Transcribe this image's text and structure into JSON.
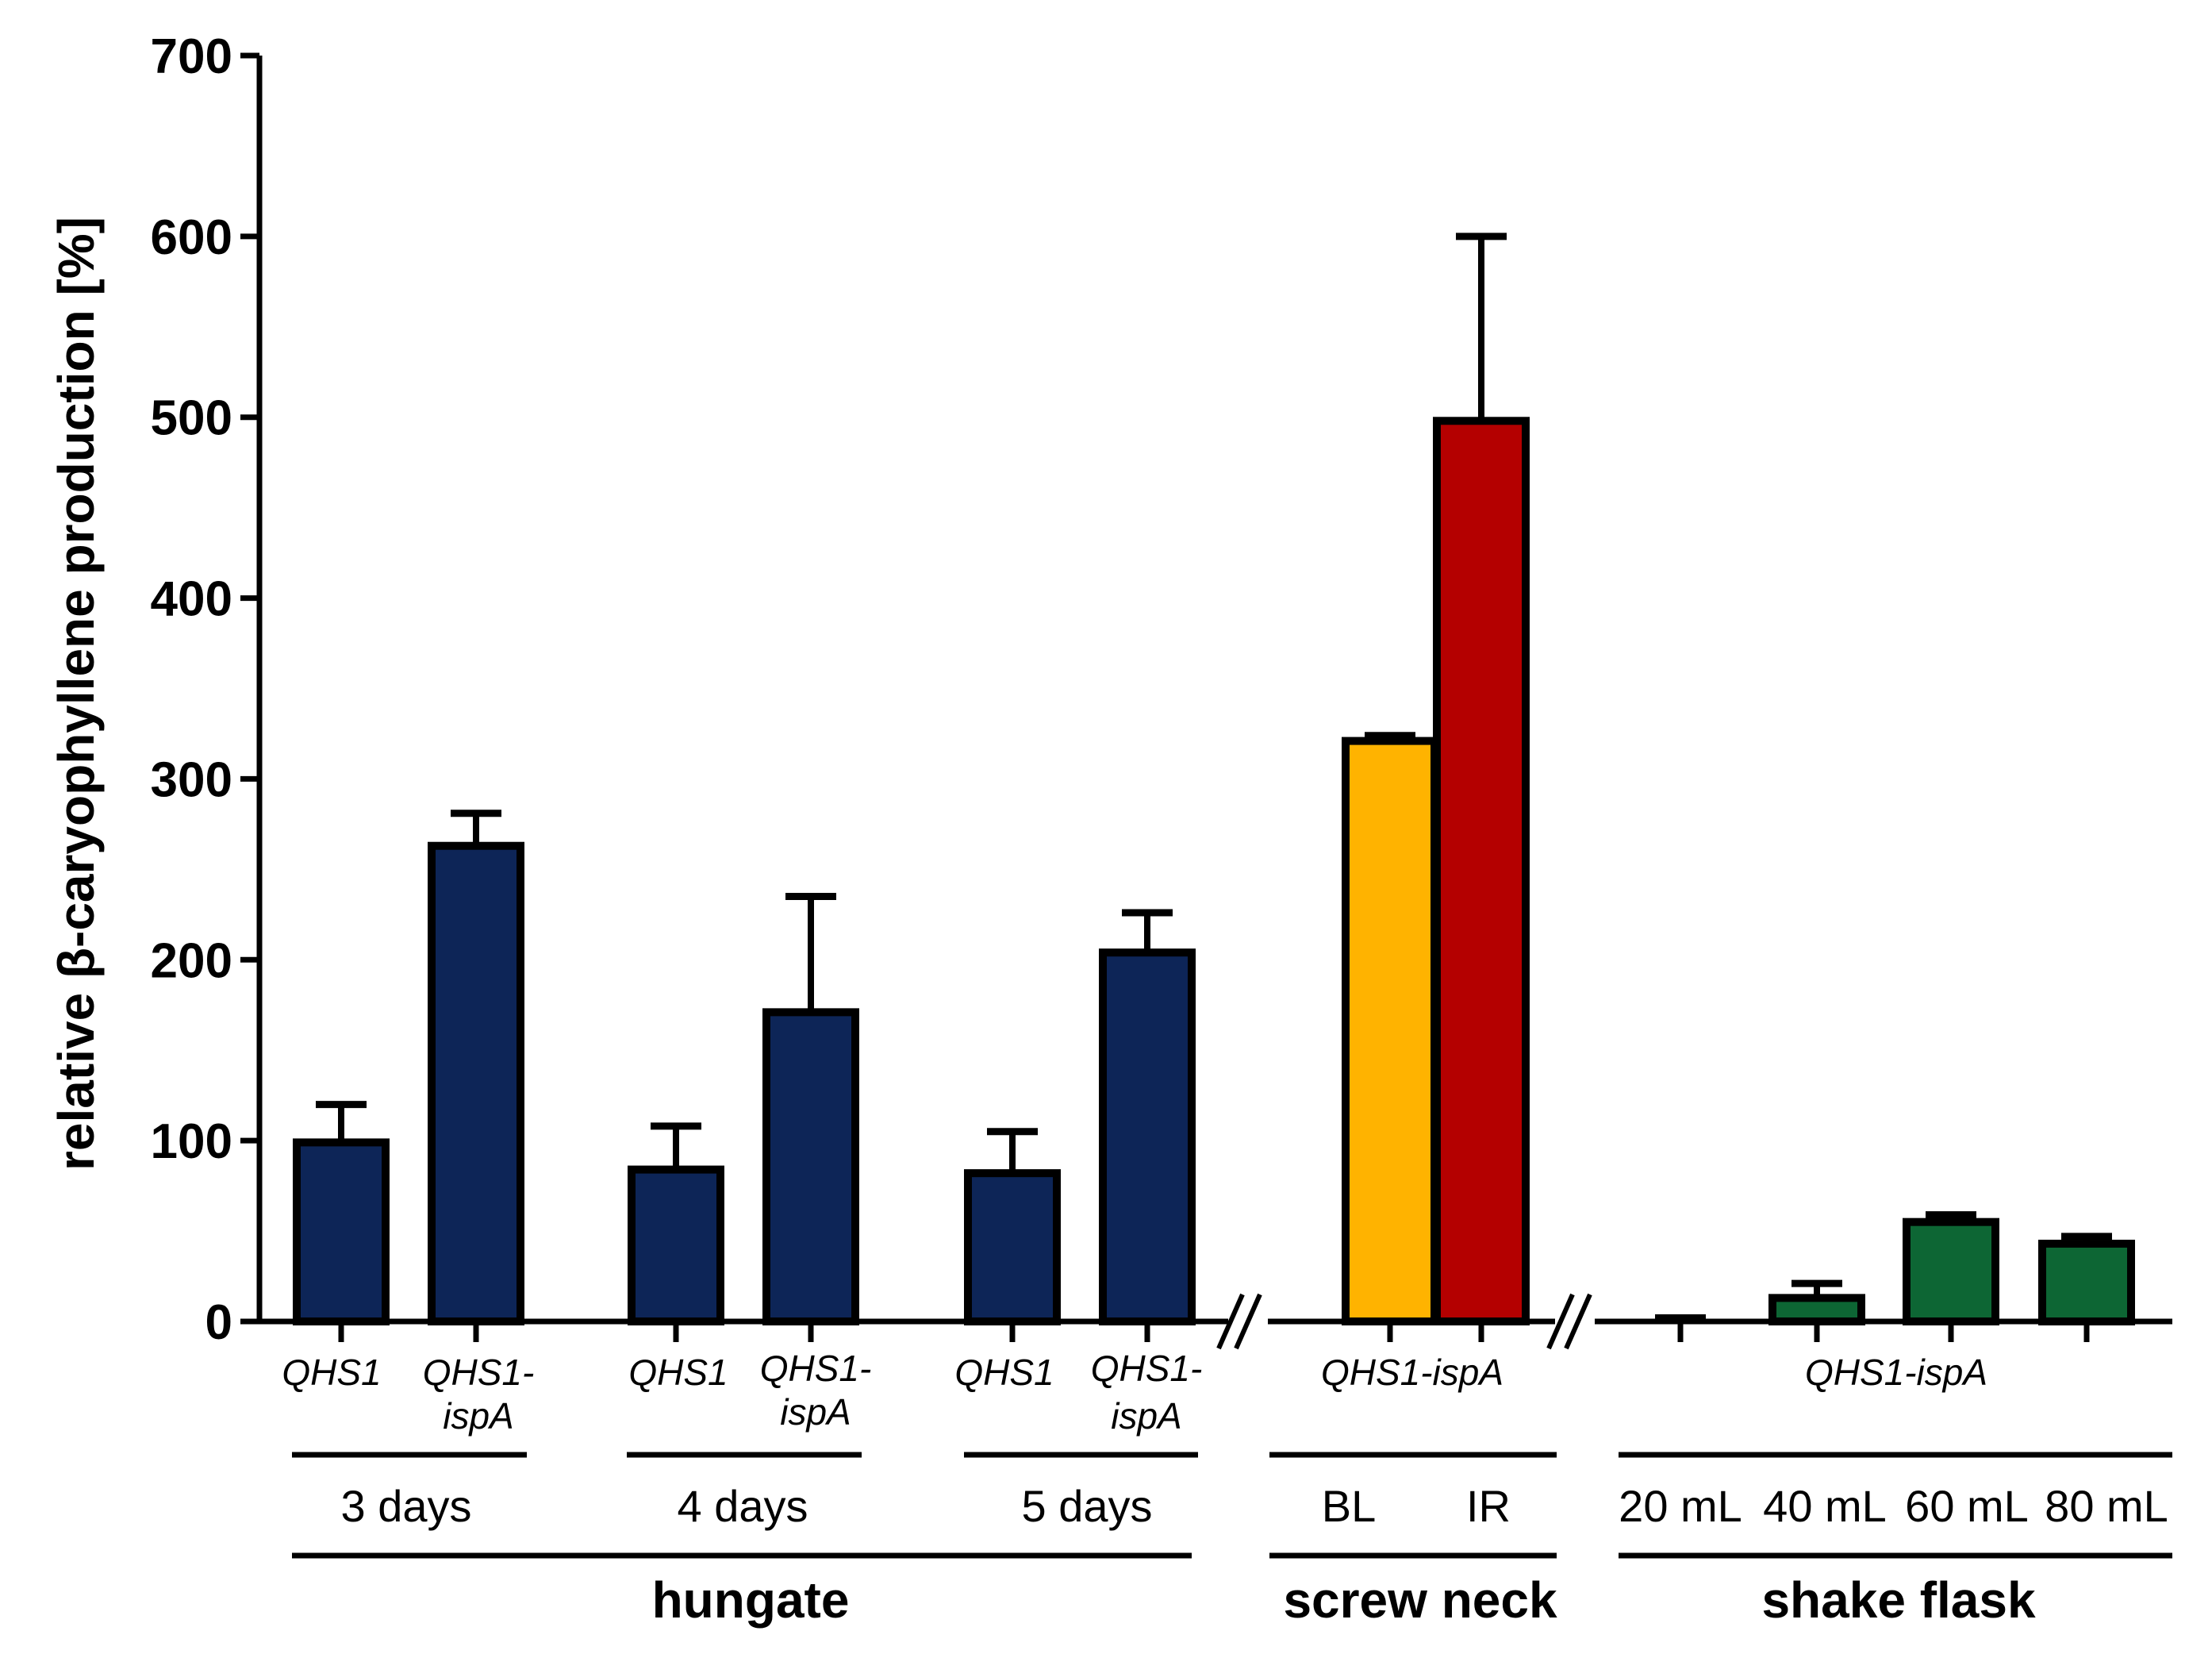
{
  "chart_data": {
    "type": "bar",
    "title": "",
    "ylabel": "relative β-caryophyllene production [%]",
    "xlabel": "",
    "ylim": [
      0,
      700
    ],
    "yticks": [
      0,
      100,
      200,
      300,
      400,
      500,
      600,
      700
    ],
    "grid": false,
    "colors": {
      "hungate": "#0d2557",
      "screw_bl": "#ffb300",
      "screw_ir": "#b40000",
      "shake": "#0d6634",
      "axis": "#000000"
    },
    "bars": [
      {
        "strain": "QHS1",
        "condition": "3 days",
        "value": 99,
        "error": 21,
        "color": "#0d2557"
      },
      {
        "strain": "QHS1-ispA",
        "condition": "3 days",
        "value": 263,
        "error": 18,
        "color": "#0d2557"
      },
      {
        "strain": "QHS1",
        "condition": "4 days",
        "value": 84,
        "error": 24,
        "color": "#0d2557"
      },
      {
        "strain": "QHS1-ispA",
        "condition": "4 days",
        "value": 171,
        "error": 64,
        "color": "#0d2557"
      },
      {
        "strain": "QHS1",
        "condition": "5 days",
        "value": 82,
        "error": 23,
        "color": "#0d2557"
      },
      {
        "strain": "QHS1-ispA",
        "condition": "5 days",
        "value": 204,
        "error": 22,
        "color": "#0d2557"
      },
      {
        "strain": "QHS1-ispA",
        "condition": "BL",
        "value": 321,
        "error": 3,
        "color": "#ffb300"
      },
      {
        "strain": "QHS1-ispA",
        "condition": "IR",
        "value": 498,
        "error": 102,
        "color": "#b40000"
      },
      {
        "strain": "QHS1-ispA",
        "condition": "20 mL",
        "value": 0,
        "error": 2,
        "color": "#0d6634"
      },
      {
        "strain": "QHS1-ispA",
        "condition": "40 mL",
        "value": 13,
        "error": 8,
        "color": "#0d6634"
      },
      {
        "strain": "QHS1-ispA",
        "condition": "60 mL",
        "value": 55,
        "error": 4,
        "color": "#0d6634"
      },
      {
        "strain": "QHS1-ispA",
        "condition": "80 mL",
        "value": 43,
        "error": 4,
        "color": "#0d6634"
      }
    ],
    "strain_labels": [
      {
        "line1": "QHS1",
        "line2": ""
      },
      {
        "line1": "QHS1-",
        "line2": "ispA"
      },
      {
        "line1": "QHS1",
        "line2": ""
      },
      {
        "line1": "QHS1-",
        "line2": "ispA"
      },
      {
        "line1": "QHS1",
        "line2": ""
      },
      {
        "line1": "QHS1-",
        "line2": "ispA"
      },
      {
        "line1": "QHS1-ispA",
        "line2": ""
      },
      {
        "line1": "QHS1-ispA",
        "line2": ""
      }
    ],
    "condition_labels": [
      "3 days",
      "4 days",
      "5 days",
      "BL",
      "IR",
      "20 mL",
      "40 mL",
      "60 mL",
      "80 mL"
    ],
    "culture_labels": [
      "hungate",
      "screw neck",
      "shake flask"
    ]
  }
}
